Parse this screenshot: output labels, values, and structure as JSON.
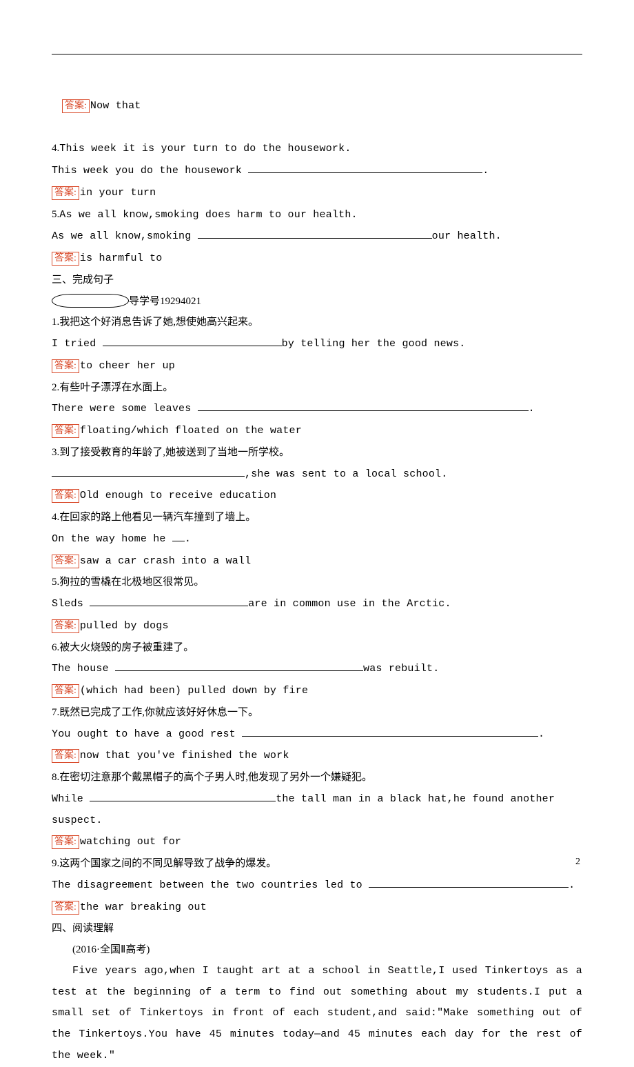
{
  "top_answer": {
    "label": "答案:",
    "text": "Now that"
  },
  "q4": {
    "num": "4.",
    "en": "This week it is your turn to do the housework.",
    "line2_pre": "This week you do the housework ",
    "blank_w": 340,
    "tail": ".",
    "ans_label": "答案:",
    "ans": "in your turn"
  },
  "q5": {
    "num": "5.",
    "en": "As we all know,smoking does harm to our health.",
    "line2_pre": "As we all know,smoking ",
    "blank_w": 340,
    "tail": "our health.",
    "ans_label": "答案:",
    "ans": "is harmful to"
  },
  "sec3": {
    "title": "三、完成句子",
    "guide": "导学号19294021"
  },
  "c1": {
    "num": "1.",
    "cn": "我把这个好消息告诉了她,想使她高兴起来。",
    "pre": "I tried ",
    "blank_w": 260,
    "tail": "by telling her the good news.",
    "ans_label": "答案:",
    "ans": "to cheer her up"
  },
  "c2": {
    "num": "2.",
    "cn": "有些叶子漂浮在水面上。",
    "pre": "There were some leaves ",
    "blank_w": 480,
    "tail": ".",
    "ans_label": "答案:",
    "ans": "floating/which floated on the water"
  },
  "c3": {
    "num": "3.",
    "cn": "到了接受教育的年龄了,她被送到了当地一所学校。",
    "pre": "",
    "blank_w": 280,
    "tail": ",she was sent to a local school.",
    "ans_label": "答案:",
    "ans": "Old enough to receive education"
  },
  "c4": {
    "num": "4.",
    "cn": "在回家的路上他看见一辆汽车撞到了墙上。",
    "pre": "On the way home he ",
    "blank_w": 18,
    "tail": ".",
    "ans_label": "答案:",
    "ans": "saw a car crash into a wall"
  },
  "c5": {
    "num": "5.",
    "cn": "狗拉的雪橇在北极地区很常见。",
    "pre": "Sleds ",
    "blank_w": 230,
    "tail": "are in common use in the Arctic.",
    "ans_label": "答案:",
    "ans": "pulled by dogs"
  },
  "c6": {
    "num": "6.",
    "cn": "被大火烧毁的房子被重建了。",
    "pre": "The house ",
    "blank_w": 360,
    "tail": "was rebuilt.",
    "ans_label": "答案:",
    "ans": "(which had been) pulled down by fire"
  },
  "c7": {
    "num": "7.",
    "cn": "既然已完成了工作,你就应该好好休息一下。",
    "pre": "You ought to have a good rest ",
    "blank_w": 430,
    "tail": ".",
    "ans_label": "答案:",
    "ans": "now that you've finished the work"
  },
  "c8": {
    "num": "8.",
    "cn": "在密切注意那个戴黑帽子的高个子男人时,他发现了另外一个嫌疑犯。",
    "pre": "While ",
    "blank_w": 270,
    "tail": "the tall man in a black hat,he found another",
    "line3": "suspect.",
    "ans_label": "答案:",
    "ans": "watching out for"
  },
  "c9": {
    "num": "9.",
    "cn": "这两个国家之间的不同见解导致了战争的爆发。",
    "pre": "The disagreement between the two countries led to ",
    "blank_w": 290,
    "tail": ".",
    "ans_label": "答案:",
    "ans": "the war breaking out"
  },
  "sec4": {
    "title": "四、阅读理解",
    "source": "(2016·全国Ⅱ高考)"
  },
  "passage": "Five years ago,when I taught art at a school in Seattle,I used Tinkertoys as a test at the beginning of a term to find out something about my students.I put a small set of Tinkertoys in front of each student,and said:\"Make something out of the Tinkertoys.You have 45 minutes today—and 45 minutes each day for the rest of the week.\"",
  "page_number": "2"
}
